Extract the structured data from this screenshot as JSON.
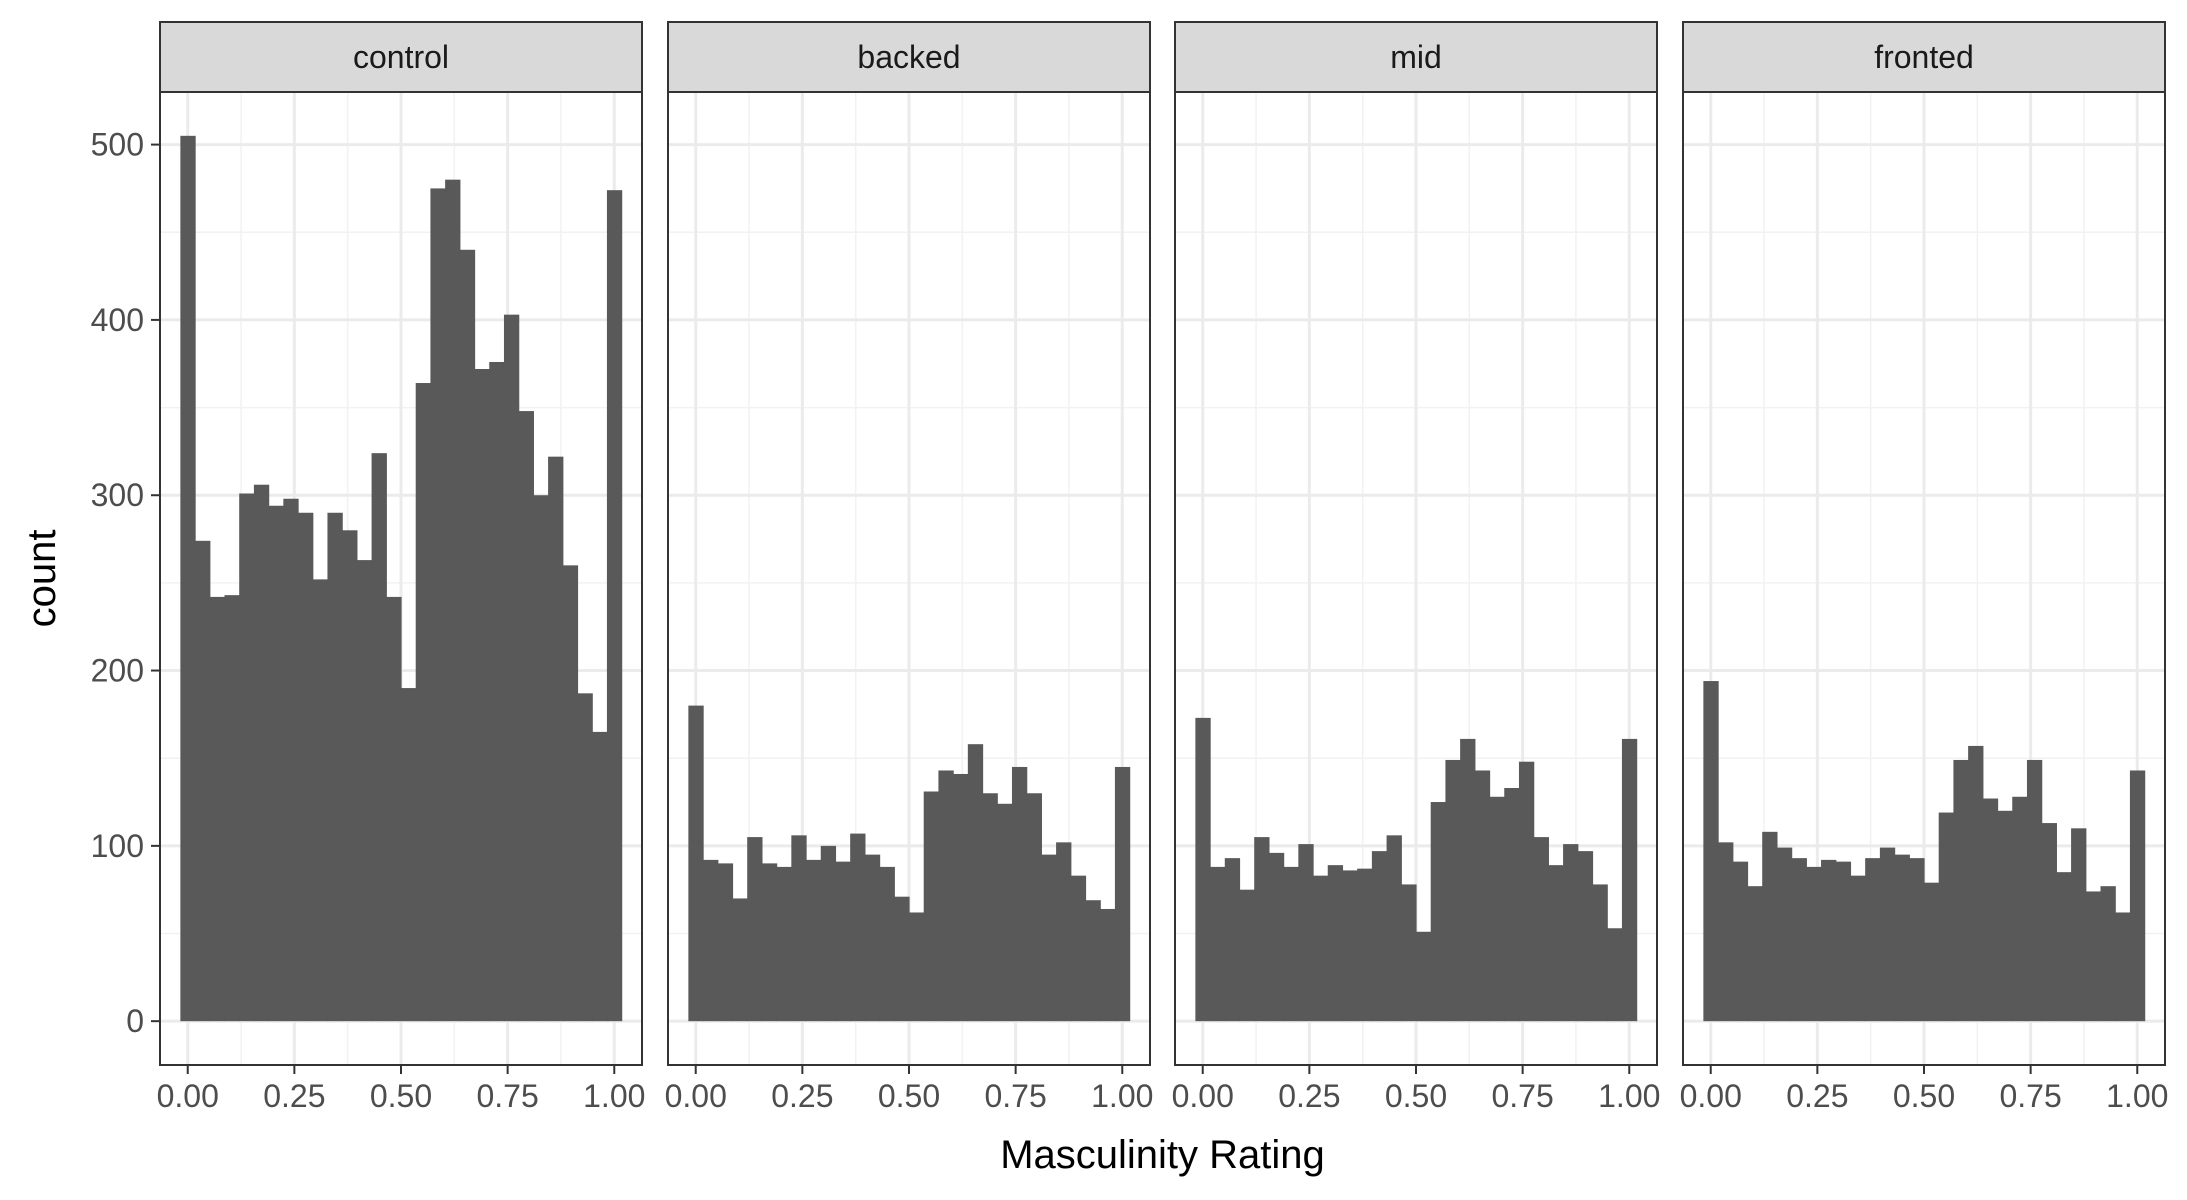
{
  "chart_data": {
    "type": "bar",
    "xlabel": "Masculinity Rating",
    "ylabel": "count",
    "xlim": [
      -0.065,
      1.065
    ],
    "ylim": [
      -25,
      530
    ],
    "x_ticks": [
      0.0,
      0.25,
      0.5,
      0.75,
      1.0
    ],
    "x_tick_labels": [
      "0.00",
      "0.25",
      "0.50",
      "0.75",
      "1.00"
    ],
    "y_ticks": [
      0,
      100,
      200,
      300,
      400,
      500
    ],
    "y_tick_labels": [
      "0",
      "100",
      "200",
      "300",
      "400",
      "500"
    ],
    "bins": 30,
    "bin_range": [
      -0.01724,
      1.01724
    ],
    "grid": true,
    "bar_color": "#595959",
    "panels": [
      {
        "label": "control",
        "counts": [
          505,
          274,
          242,
          243,
          301,
          306,
          294,
          298,
          290,
          252,
          290,
          280,
          263,
          324,
          242,
          190,
          364,
          475,
          480,
          440,
          372,
          376,
          403,
          348,
          300,
          322,
          260,
          187,
          165,
          474
        ]
      },
      {
        "label": "backed",
        "counts": [
          180,
          92,
          90,
          70,
          105,
          90,
          88,
          106,
          92,
          100,
          91,
          107,
          95,
          88,
          71,
          62,
          131,
          143,
          141,
          158,
          130,
          124,
          145,
          130,
          95,
          102,
          83,
          69,
          64,
          145
        ]
      },
      {
        "label": "mid",
        "counts": [
          173,
          88,
          93,
          75,
          105,
          96,
          88,
          101,
          83,
          89,
          86,
          87,
          97,
          106,
          78,
          51,
          125,
          149,
          161,
          143,
          128,
          133,
          148,
          105,
          89,
          101,
          97,
          78,
          53,
          161
        ]
      },
      {
        "label": "fronted",
        "counts": [
          194,
          102,
          91,
          77,
          108,
          99,
          93,
          88,
          92,
          91,
          83,
          93,
          99,
          95,
          93,
          79,
          119,
          149,
          157,
          127,
          120,
          128,
          149,
          113,
          85,
          110,
          74,
          77,
          62,
          143
        ]
      }
    ]
  }
}
